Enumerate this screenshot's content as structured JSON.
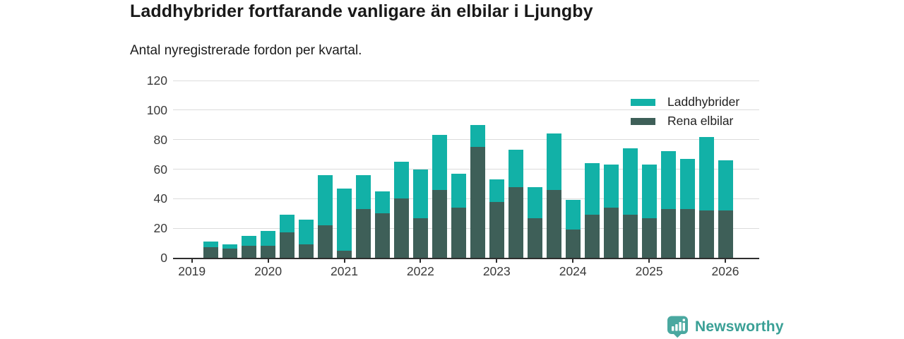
{
  "header": {
    "title": "Laddhybrider fortfarande vanligare än elbilar i Ljungby",
    "subtitle": "Antal nyregistrerade fordon per kvartal."
  },
  "chart_data": {
    "type": "bar",
    "stacked": true,
    "title": "Laddhybrider fortfarande vanligare än elbilar i Ljungby",
    "subtitle": "Antal nyregistrerade fordon per kvartal.",
    "xlabel": "",
    "ylabel": "",
    "ylim": [
      0,
      120
    ],
    "yticks": [
      0,
      20,
      40,
      60,
      80,
      100,
      120
    ],
    "xticks": [
      "2019",
      "2020",
      "2021",
      "2022",
      "2023",
      "2024",
      "2025",
      "2026"
    ],
    "grid": "horizontal",
    "legend_position": "top-right",
    "categories": [
      "2019 Q2",
      "2019 Q3",
      "2019 Q4",
      "2020 Q1",
      "2020 Q2",
      "2020 Q3",
      "2020 Q4",
      "2021 Q1",
      "2021 Q2",
      "2021 Q3",
      "2021 Q4",
      "2022 Q1",
      "2022 Q2",
      "2022 Q3",
      "2022 Q4",
      "2023 Q1",
      "2023 Q2",
      "2023 Q3",
      "2023 Q4",
      "2024 Q1",
      "2024 Q2",
      "2024 Q3",
      "2024 Q4",
      "2025 Q1",
      "2025 Q2",
      "2025 Q3",
      "2025 Q4",
      "2026 Q1"
    ],
    "series": [
      {
        "name": "Laddhybrider",
        "color": "#12b1a7",
        "values": [
          4,
          3,
          7,
          10,
          12,
          17,
          34,
          42,
          23,
          15,
          25,
          33,
          37,
          23,
          15,
          15,
          25,
          21,
          38,
          20,
          35,
          29,
          45,
          36,
          39,
          34,
          50,
          34
        ]
      },
      {
        "name": "Rena elbilar",
        "color": "#3e5f58",
        "values": [
          7,
          6,
          8,
          8,
          17,
          9,
          22,
          5,
          33,
          30,
          40,
          27,
          46,
          34,
          75,
          38,
          48,
          27,
          46,
          19,
          29,
          34,
          29,
          27,
          33,
          33,
          32,
          32
        ]
      }
    ],
    "stack_bottom_series": "Rena elbilar",
    "totals": [
      11,
      9,
      15,
      18,
      29,
      26,
      56,
      47,
      56,
      45,
      65,
      60,
      83,
      57,
      90,
      53,
      73,
      48,
      84,
      39,
      64,
      63,
      74,
      63,
      72,
      67,
      82,
      66
    ]
  },
  "legend": {
    "items": [
      {
        "label": "Laddhybrider",
        "color": "#12b1a7"
      },
      {
        "label": "Rena elbilar",
        "color": "#3e5f58"
      }
    ]
  },
  "branding": {
    "logo_text": "Newsworthy",
    "logo_icon": "bar-chart-speech-bubble",
    "logo_color": "#4aa8a0",
    "logo_text_color": "#3aa096"
  },
  "colors": {
    "axis": "#2e2e2e",
    "grid": "#dcdcdc",
    "title_text": "#191919",
    "tick_text": "#3a3a3a"
  }
}
